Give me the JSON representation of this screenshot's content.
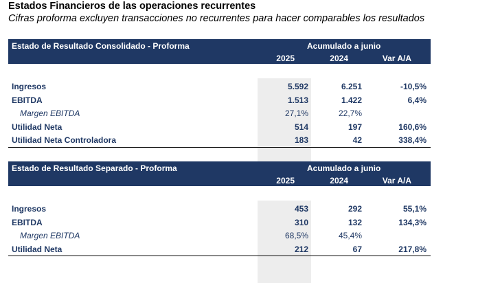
{
  "title": "Estados Financieros de las operaciones recurrentes",
  "subtitle": "Cifras proforma excluyen transacciones no recurrentes para hacer comparables los resultados",
  "tables": [
    {
      "header": "Estado de Resultado Consolidado - Proforma",
      "period": "Acumulado a junio",
      "col_2025": "2025",
      "col_2024": "2024",
      "col_var": "Var A/A",
      "rows": [
        {
          "label": "Ingresos",
          "v2025": "5.592",
          "v2024": "6.251",
          "var": "-10,5%"
        },
        {
          "label": "EBITDA",
          "v2025": "1.513",
          "v2024": "1.422",
          "var": "6,4%"
        },
        {
          "label": "Margen EBITDA",
          "v2025": "27,1%",
          "v2024": "22,7%",
          "var": ""
        },
        {
          "label": "Utilidad Neta",
          "v2025": "514",
          "v2024": "197",
          "var": "160,6%"
        },
        {
          "label": "Utilidad Neta Controladora",
          "v2025": "183",
          "v2024": "42",
          "var": "338,4%"
        }
      ]
    },
    {
      "header": "Estado de Resultado Separado - Proforma",
      "period": "Acumulado a junio",
      "col_2025": "2025",
      "col_2024": "2024",
      "col_var": "Var A/A",
      "rows": [
        {
          "label": "Ingresos",
          "v2025": "453",
          "v2024": "292",
          "var": "55,1%"
        },
        {
          "label": "EBITDA",
          "v2025": "310",
          "v2024": "132",
          "var": "134,3%"
        },
        {
          "label": "Margen EBITDA",
          "v2025": "68,5%",
          "v2024": "45,4%",
          "var": ""
        },
        {
          "label": "Utilidad Neta",
          "v2025": "212",
          "v2024": "67",
          "var": "217,8%"
        }
      ]
    }
  ]
}
